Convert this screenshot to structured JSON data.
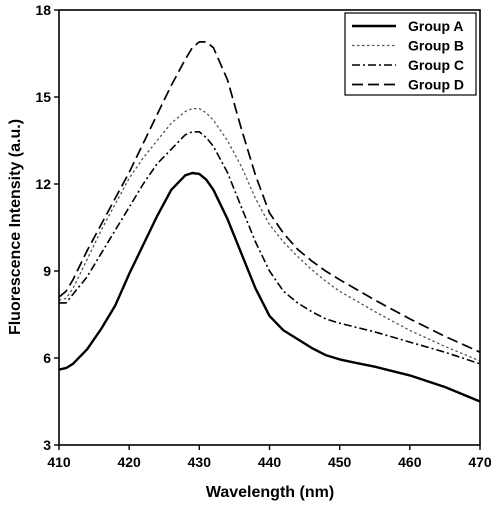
{
  "chart_data": {
    "type": "line",
    "title": "",
    "xlabel": "Wavelength (nm)",
    "ylabel": "Fluorescence Intensity (a.u.)",
    "xlim": [
      410,
      470
    ],
    "ylim": [
      3,
      18
    ],
    "xticks": [
      410,
      420,
      430,
      440,
      450,
      460,
      470
    ],
    "yticks": [
      3,
      6,
      9,
      12,
      15,
      18
    ],
    "grid": false,
    "legend_position": "top-right",
    "series": [
      {
        "name": "Group A",
        "style": "solid",
        "color": "#000000",
        "x": [
          410,
          411,
          412,
          414,
          416,
          418,
          420,
          422,
          424,
          426,
          428,
          429,
          430,
          431,
          432,
          434,
          436,
          438,
          440,
          442,
          444,
          446,
          448,
          450,
          452,
          455,
          460,
          465,
          470
        ],
        "y": [
          5.6,
          5.65,
          5.8,
          6.3,
          7.0,
          7.8,
          8.9,
          9.9,
          10.9,
          11.8,
          12.3,
          12.38,
          12.35,
          12.15,
          11.8,
          10.8,
          9.6,
          8.4,
          7.45,
          6.95,
          6.65,
          6.35,
          6.1,
          5.95,
          5.85,
          5.7,
          5.4,
          5.0,
          4.5
        ]
      },
      {
        "name": "Group B",
        "style": "dotted",
        "color": "#555555",
        "x": [
          410,
          411,
          412,
          414,
          416,
          418,
          420,
          422,
          424,
          426,
          428,
          429,
          430,
          431,
          432,
          434,
          436,
          438,
          440,
          442,
          444,
          446,
          448,
          450,
          455,
          460,
          465,
          470
        ],
        "y": [
          8.0,
          8.05,
          8.4,
          9.4,
          10.4,
          11.3,
          12.2,
          12.9,
          13.5,
          14.1,
          14.5,
          14.6,
          14.6,
          14.45,
          14.2,
          13.5,
          12.6,
          11.5,
          10.6,
          10.0,
          9.5,
          9.05,
          8.65,
          8.3,
          7.6,
          6.95,
          6.4,
          5.9
        ]
      },
      {
        "name": "Group C",
        "style": "dash-dot",
        "color": "#000000",
        "x": [
          410,
          411,
          412,
          414,
          416,
          418,
          420,
          422,
          424,
          426,
          428,
          429,
          430,
          431,
          432,
          434,
          436,
          438,
          440,
          442,
          444,
          446,
          448,
          450,
          455,
          460,
          465,
          470
        ],
        "y": [
          7.9,
          7.9,
          8.2,
          8.8,
          9.6,
          10.4,
          11.2,
          12.0,
          12.7,
          13.2,
          13.7,
          13.8,
          13.8,
          13.6,
          13.3,
          12.4,
          11.2,
          10.0,
          9.0,
          8.3,
          7.9,
          7.6,
          7.35,
          7.2,
          6.9,
          6.55,
          6.2,
          5.8
        ]
      },
      {
        "name": "Group D",
        "style": "dashed",
        "color": "#000000",
        "x": [
          410,
          411,
          412,
          414,
          416,
          418,
          420,
          422,
          424,
          426,
          428,
          429,
          430,
          431,
          432,
          434,
          436,
          438,
          440,
          442,
          444,
          446,
          448,
          450,
          455,
          460,
          465,
          470
        ],
        "y": [
          8.1,
          8.3,
          8.7,
          9.7,
          10.6,
          11.5,
          12.4,
          13.4,
          14.4,
          15.4,
          16.3,
          16.7,
          16.9,
          16.9,
          16.7,
          15.6,
          13.9,
          12.3,
          11.0,
          10.3,
          9.75,
          9.35,
          9.0,
          8.7,
          8.0,
          7.35,
          6.75,
          6.2
        ]
      }
    ]
  }
}
